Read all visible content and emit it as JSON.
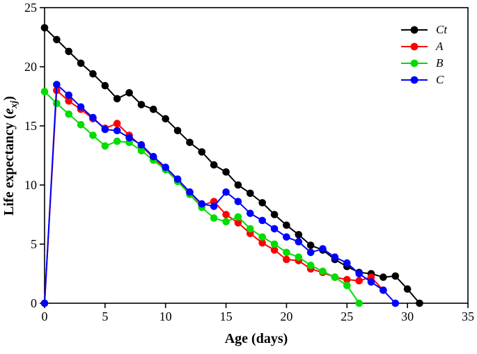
{
  "figure": {
    "background_color": "#ffffff",
    "frame_color": "#000000"
  },
  "chart_data": {
    "type": "line",
    "title": "",
    "xlabel": "Age (days)",
    "ylabel": {
      "prefix": "Life expectancy (",
      "variable": "e",
      "subscript": "xj",
      "suffix": ")"
    },
    "xlim": [
      0,
      35
    ],
    "ylim": [
      0,
      25
    ],
    "xticks": [
      0,
      5,
      10,
      15,
      20,
      25,
      30,
      35
    ],
    "yticks": [
      0,
      5,
      10,
      15,
      20,
      25
    ],
    "grid": false,
    "legend_position": "top-right",
    "marker": "filled-circle",
    "series": [
      {
        "name": "Ct",
        "color": "#000000",
        "days": [
          0,
          1,
          2,
          3,
          4,
          5,
          6,
          7,
          8,
          9,
          10,
          11,
          12,
          13,
          14,
          15,
          16,
          17,
          18,
          19,
          20,
          21,
          22,
          23,
          24,
          25,
          26,
          27,
          28,
          29,
          30,
          31
        ],
        "values": [
          23.3,
          22.3,
          21.3,
          20.3,
          19.4,
          18.4,
          17.3,
          17.8,
          16.8,
          16.4,
          15.6,
          14.6,
          13.6,
          12.8,
          11.7,
          11.1,
          10.0,
          9.3,
          8.5,
          7.5,
          6.6,
          5.8,
          4.9,
          4.5,
          3.7,
          3.1,
          2.6,
          2.5,
          2.2,
          2.3,
          1.2,
          0.0
        ]
      },
      {
        "name": "A",
        "color": "#ff0000",
        "days": [
          0,
          1,
          2,
          3,
          4,
          5,
          6,
          7,
          8,
          9,
          10,
          11,
          12,
          13,
          14,
          15,
          16,
          17,
          18,
          19,
          20,
          21,
          22,
          23,
          24,
          25,
          26,
          27,
          28
        ],
        "values": [
          0.0,
          18.0,
          17.1,
          16.4,
          15.6,
          14.8,
          15.2,
          14.2,
          13.3,
          12.3,
          11.4,
          10.4,
          9.4,
          8.3,
          8.6,
          7.5,
          6.8,
          5.9,
          5.1,
          4.5,
          3.7,
          3.6,
          2.9,
          2.6,
          2.2,
          2.0,
          1.9,
          2.2,
          1.1
        ]
      },
      {
        "name": "B",
        "color": "#00dd00",
        "days": [
          0,
          1,
          2,
          3,
          4,
          5,
          6,
          7,
          8,
          9,
          10,
          11,
          12,
          13,
          14,
          15,
          16,
          17,
          18,
          19,
          20,
          21,
          22,
          23,
          24,
          25,
          26
        ],
        "values": [
          17.9,
          16.9,
          16.0,
          15.1,
          14.2,
          13.3,
          13.7,
          13.6,
          12.9,
          12.1,
          11.3,
          10.3,
          9.2,
          8.1,
          7.2,
          6.9,
          7.3,
          6.3,
          5.6,
          5.0,
          4.3,
          3.9,
          3.2,
          2.7,
          2.2,
          1.5,
          0.0
        ]
      },
      {
        "name": "C",
        "color": "#0000ff",
        "days": [
          0,
          1,
          2,
          3,
          4,
          5,
          6,
          7,
          8,
          9,
          10,
          11,
          12,
          13,
          14,
          15,
          16,
          17,
          18,
          19,
          20,
          21,
          22,
          23,
          24,
          25,
          26,
          27,
          28,
          29
        ],
        "values": [
          0.0,
          18.5,
          17.6,
          16.6,
          15.7,
          14.7,
          14.6,
          14.0,
          13.4,
          12.4,
          11.5,
          10.5,
          9.4,
          8.4,
          8.2,
          9.4,
          8.6,
          7.6,
          7.0,
          6.3,
          5.6,
          5.2,
          4.3,
          4.6,
          3.9,
          3.4,
          2.5,
          1.8,
          1.1,
          0.0
        ]
      }
    ]
  }
}
